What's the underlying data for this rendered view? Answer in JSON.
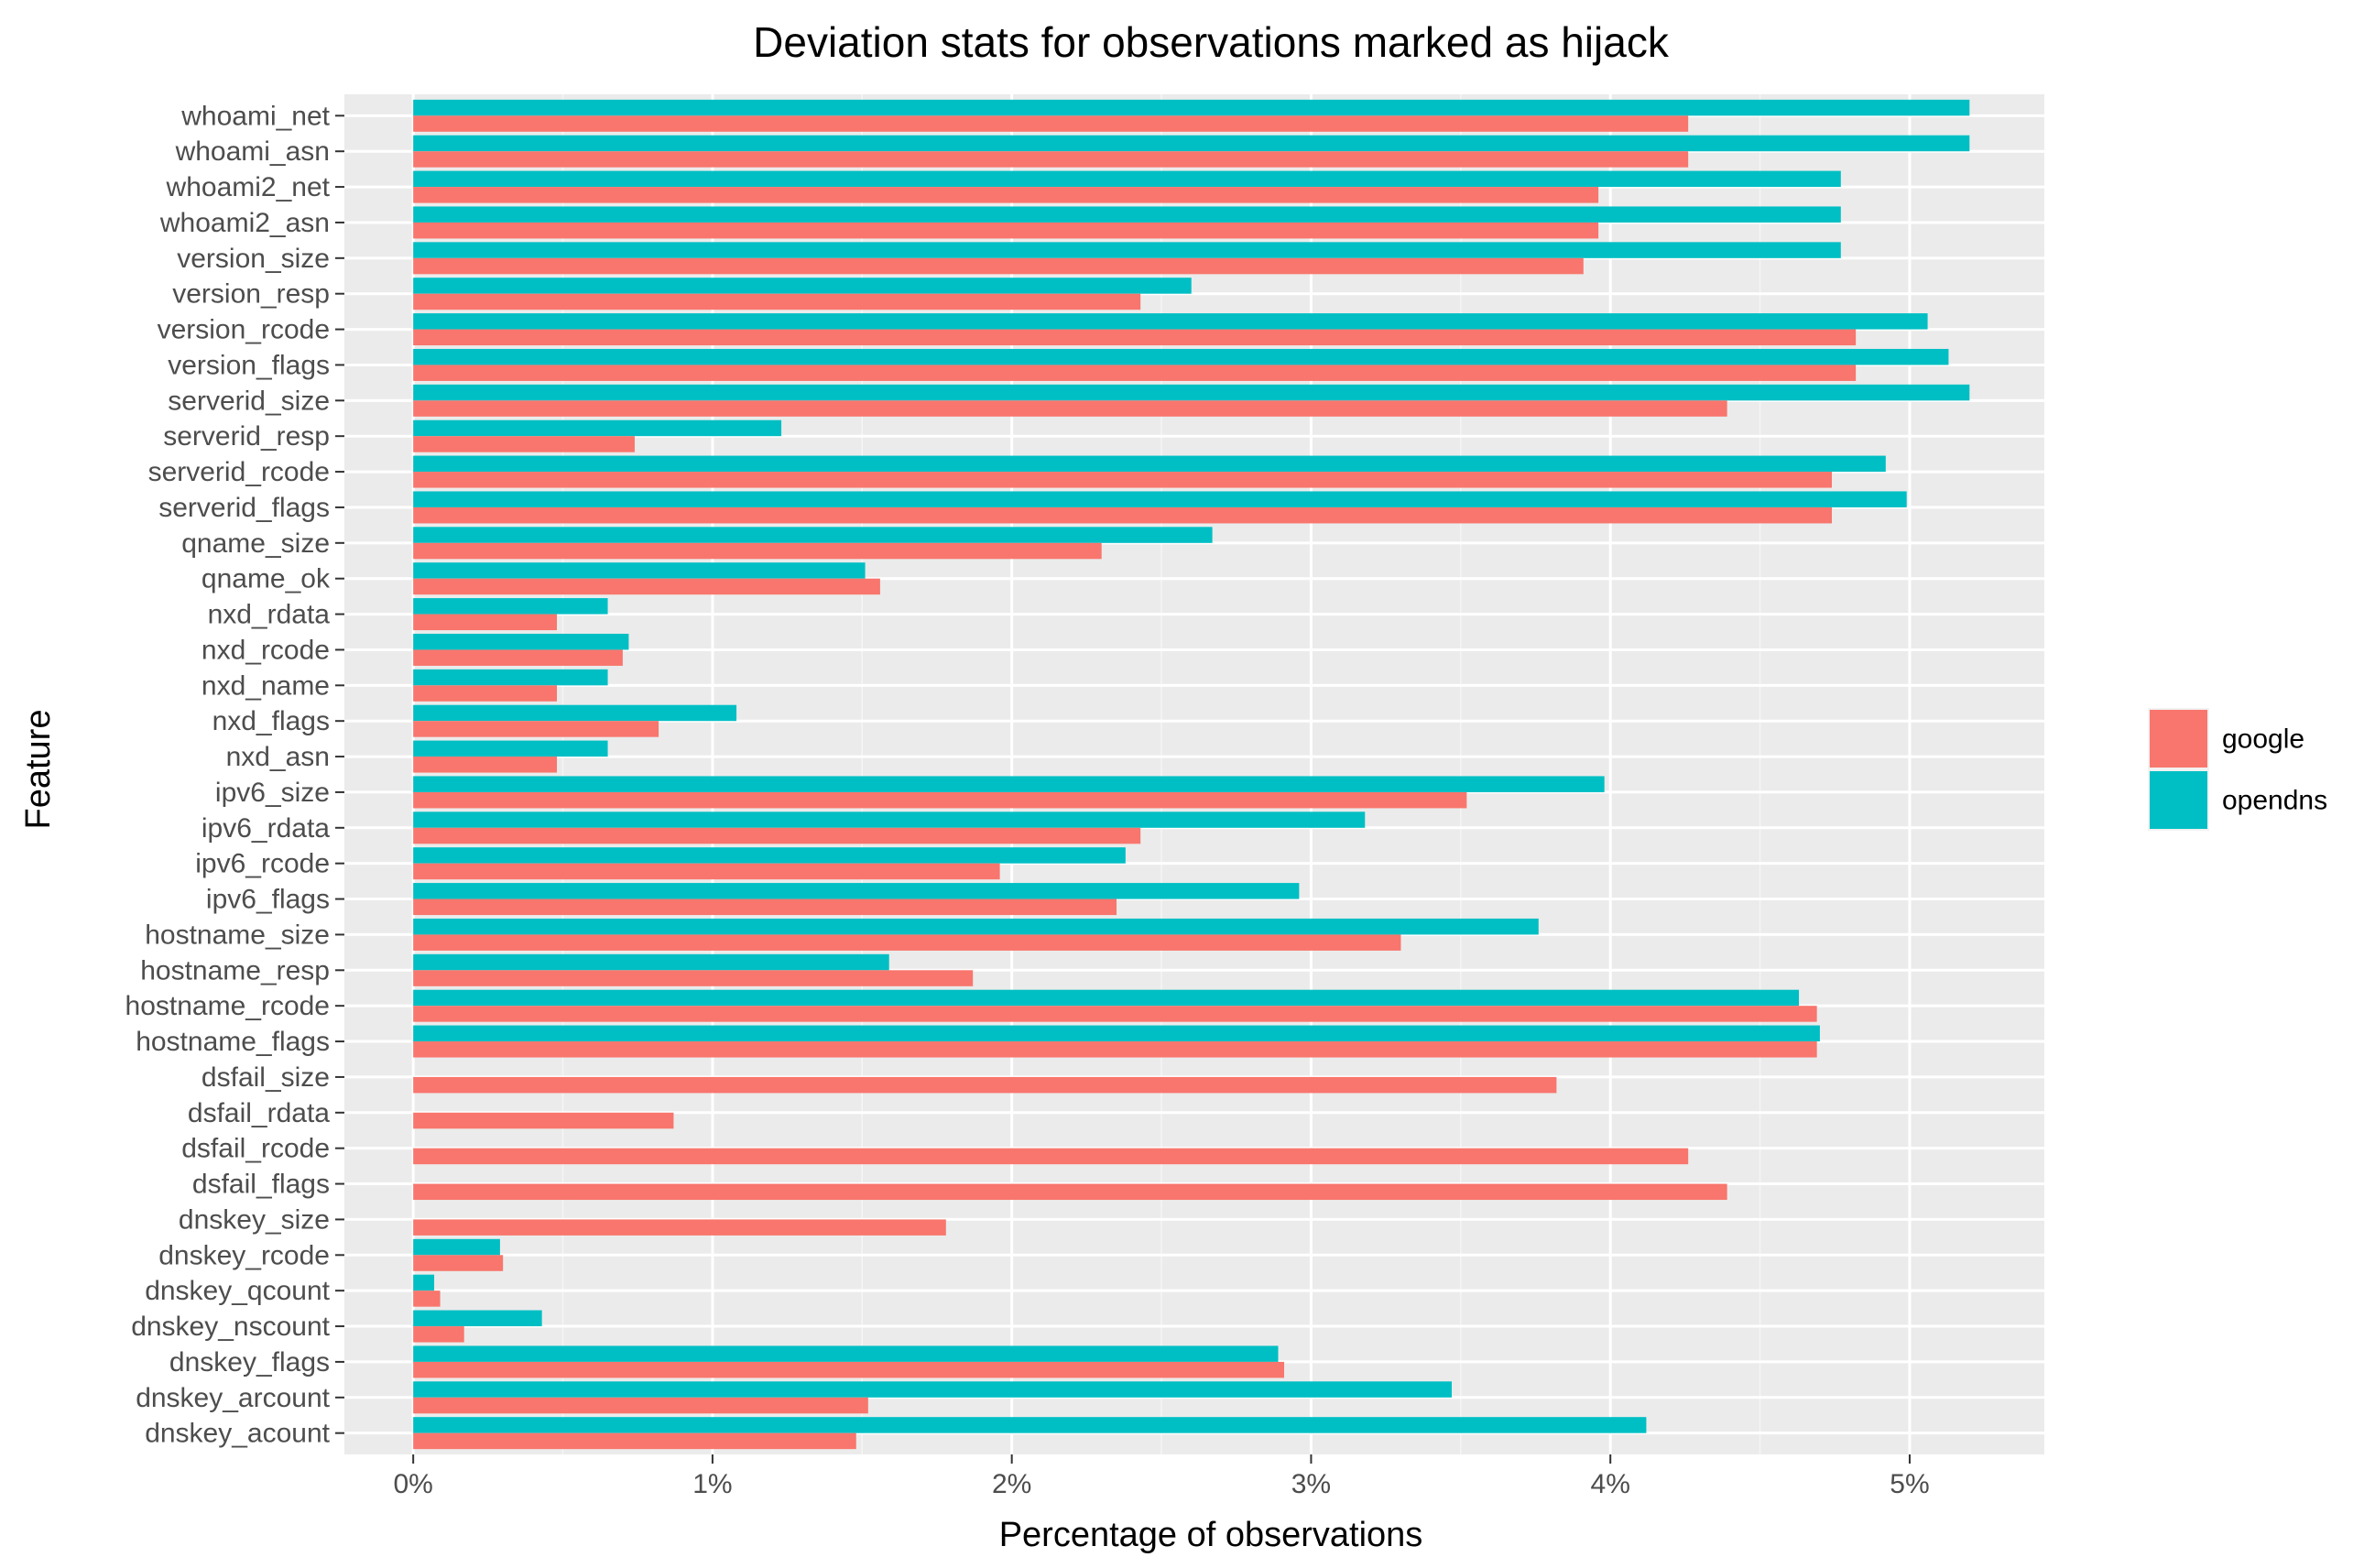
{
  "chart_data": {
    "type": "bar",
    "orientation": "horizontal",
    "title": "Deviation stats for observations marked as hijack",
    "xlabel": "Percentage of observations",
    "ylabel": "Feature",
    "xlim": [
      -0.23,
      5.45
    ],
    "x_ticks": [
      0,
      1,
      2,
      3,
      4,
      5
    ],
    "x_tick_labels": [
      "0%",
      "1%",
      "2%",
      "3%",
      "4%",
      "5%"
    ],
    "grid": true,
    "legend_position": "right",
    "categories": [
      "whoami_net",
      "whoami_asn",
      "whoami2_net",
      "whoami2_asn",
      "version_size",
      "version_resp",
      "version_rcode",
      "version_flags",
      "serverid_size",
      "serverid_resp",
      "serverid_rcode",
      "serverid_flags",
      "qname_size",
      "qname_ok",
      "nxd_rdata",
      "nxd_rcode",
      "nxd_name",
      "nxd_flags",
      "nxd_asn",
      "ipv6_size",
      "ipv6_rdata",
      "ipv6_rcode",
      "ipv6_flags",
      "hostname_size",
      "hostname_resp",
      "hostname_rcode",
      "hostname_flags",
      "dsfail_size",
      "dsfail_rdata",
      "dsfail_rcode",
      "dsfail_flags",
      "dnskey_size",
      "dnskey_rcode",
      "dnskey_qcount",
      "dnskey_nscount",
      "dnskey_flags",
      "dnskey_arcount",
      "dnskey_acount"
    ],
    "series": [
      {
        "name": "google",
        "color": "#F8766D",
        "values": [
          4.26,
          4.26,
          3.96,
          3.96,
          3.91,
          2.43,
          4.82,
          4.82,
          4.39,
          0.74,
          4.74,
          4.74,
          2.3,
          1.56,
          0.48,
          0.7,
          0.48,
          0.82,
          0.48,
          3.52,
          2.43,
          1.96,
          2.35,
          3.3,
          1.87,
          4.69,
          4.69,
          3.82,
          0.87,
          4.26,
          4.39,
          1.78,
          0.3,
          0.09,
          0.17,
          2.91,
          1.52,
          1.48
        ]
      },
      {
        "name": "opendns",
        "color": "#00BFC4",
        "values": [
          5.2,
          5.2,
          4.77,
          4.77,
          4.77,
          2.6,
          5.06,
          5.13,
          5.2,
          1.23,
          4.92,
          4.99,
          2.67,
          1.51,
          0.65,
          0.72,
          0.65,
          1.08,
          0.65,
          3.98,
          3.18,
          2.38,
          2.96,
          3.76,
          1.59,
          4.63,
          4.7,
          0.0,
          0.0,
          0.0,
          0.0,
          0.0,
          0.29,
          0.07,
          0.43,
          2.89,
          3.47,
          4.12
        ]
      }
    ],
    "colors": {
      "panel_background": "#EBEBEB",
      "grid_major": "#FFFFFF",
      "tick_text": "#4D4D4D"
    }
  }
}
